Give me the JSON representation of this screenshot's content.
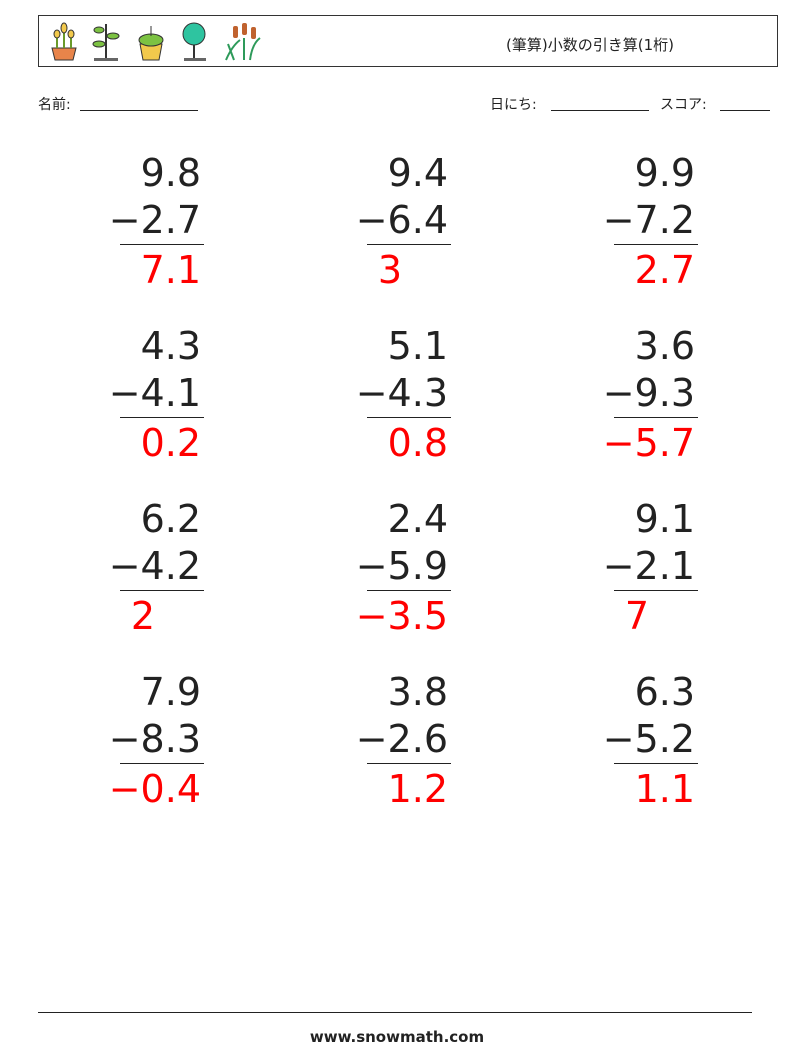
{
  "header": {
    "title": "(筆算)小数の引き算(1桁)"
  },
  "fields": {
    "name": "名前:",
    "date": "日にち:",
    "score": "スコア:"
  },
  "problems": [
    {
      "top": "9.8",
      "bottom": "−2.7",
      "answer": "7.1"
    },
    {
      "top": "9.4",
      "bottom": "−6.4",
      "answer": "3"
    },
    {
      "top": "9.9",
      "bottom": "−7.2",
      "answer": "2.7"
    },
    {
      "top": "4.3",
      "bottom": "−4.1",
      "answer": "0.2"
    },
    {
      "top": "5.1",
      "bottom": "−4.3",
      "answer": "0.8"
    },
    {
      "top": "3.6",
      "bottom": "−9.3",
      "answer": "−5.7"
    },
    {
      "top": "6.2",
      "bottom": "−4.2",
      "answer": "2"
    },
    {
      "top": "2.4",
      "bottom": "−5.9",
      "answer": "−3.5"
    },
    {
      "top": "9.1",
      "bottom": "−2.1",
      "answer": "7"
    },
    {
      "top": "7.9",
      "bottom": "−8.3",
      "answer": "−0.4"
    },
    {
      "top": "3.8",
      "bottom": "−2.6",
      "answer": "1.2"
    },
    {
      "top": "6.3",
      "bottom": "−5.2",
      "answer": "1.1"
    }
  ],
  "footer": {
    "site": "www.snowmath.com"
  }
}
